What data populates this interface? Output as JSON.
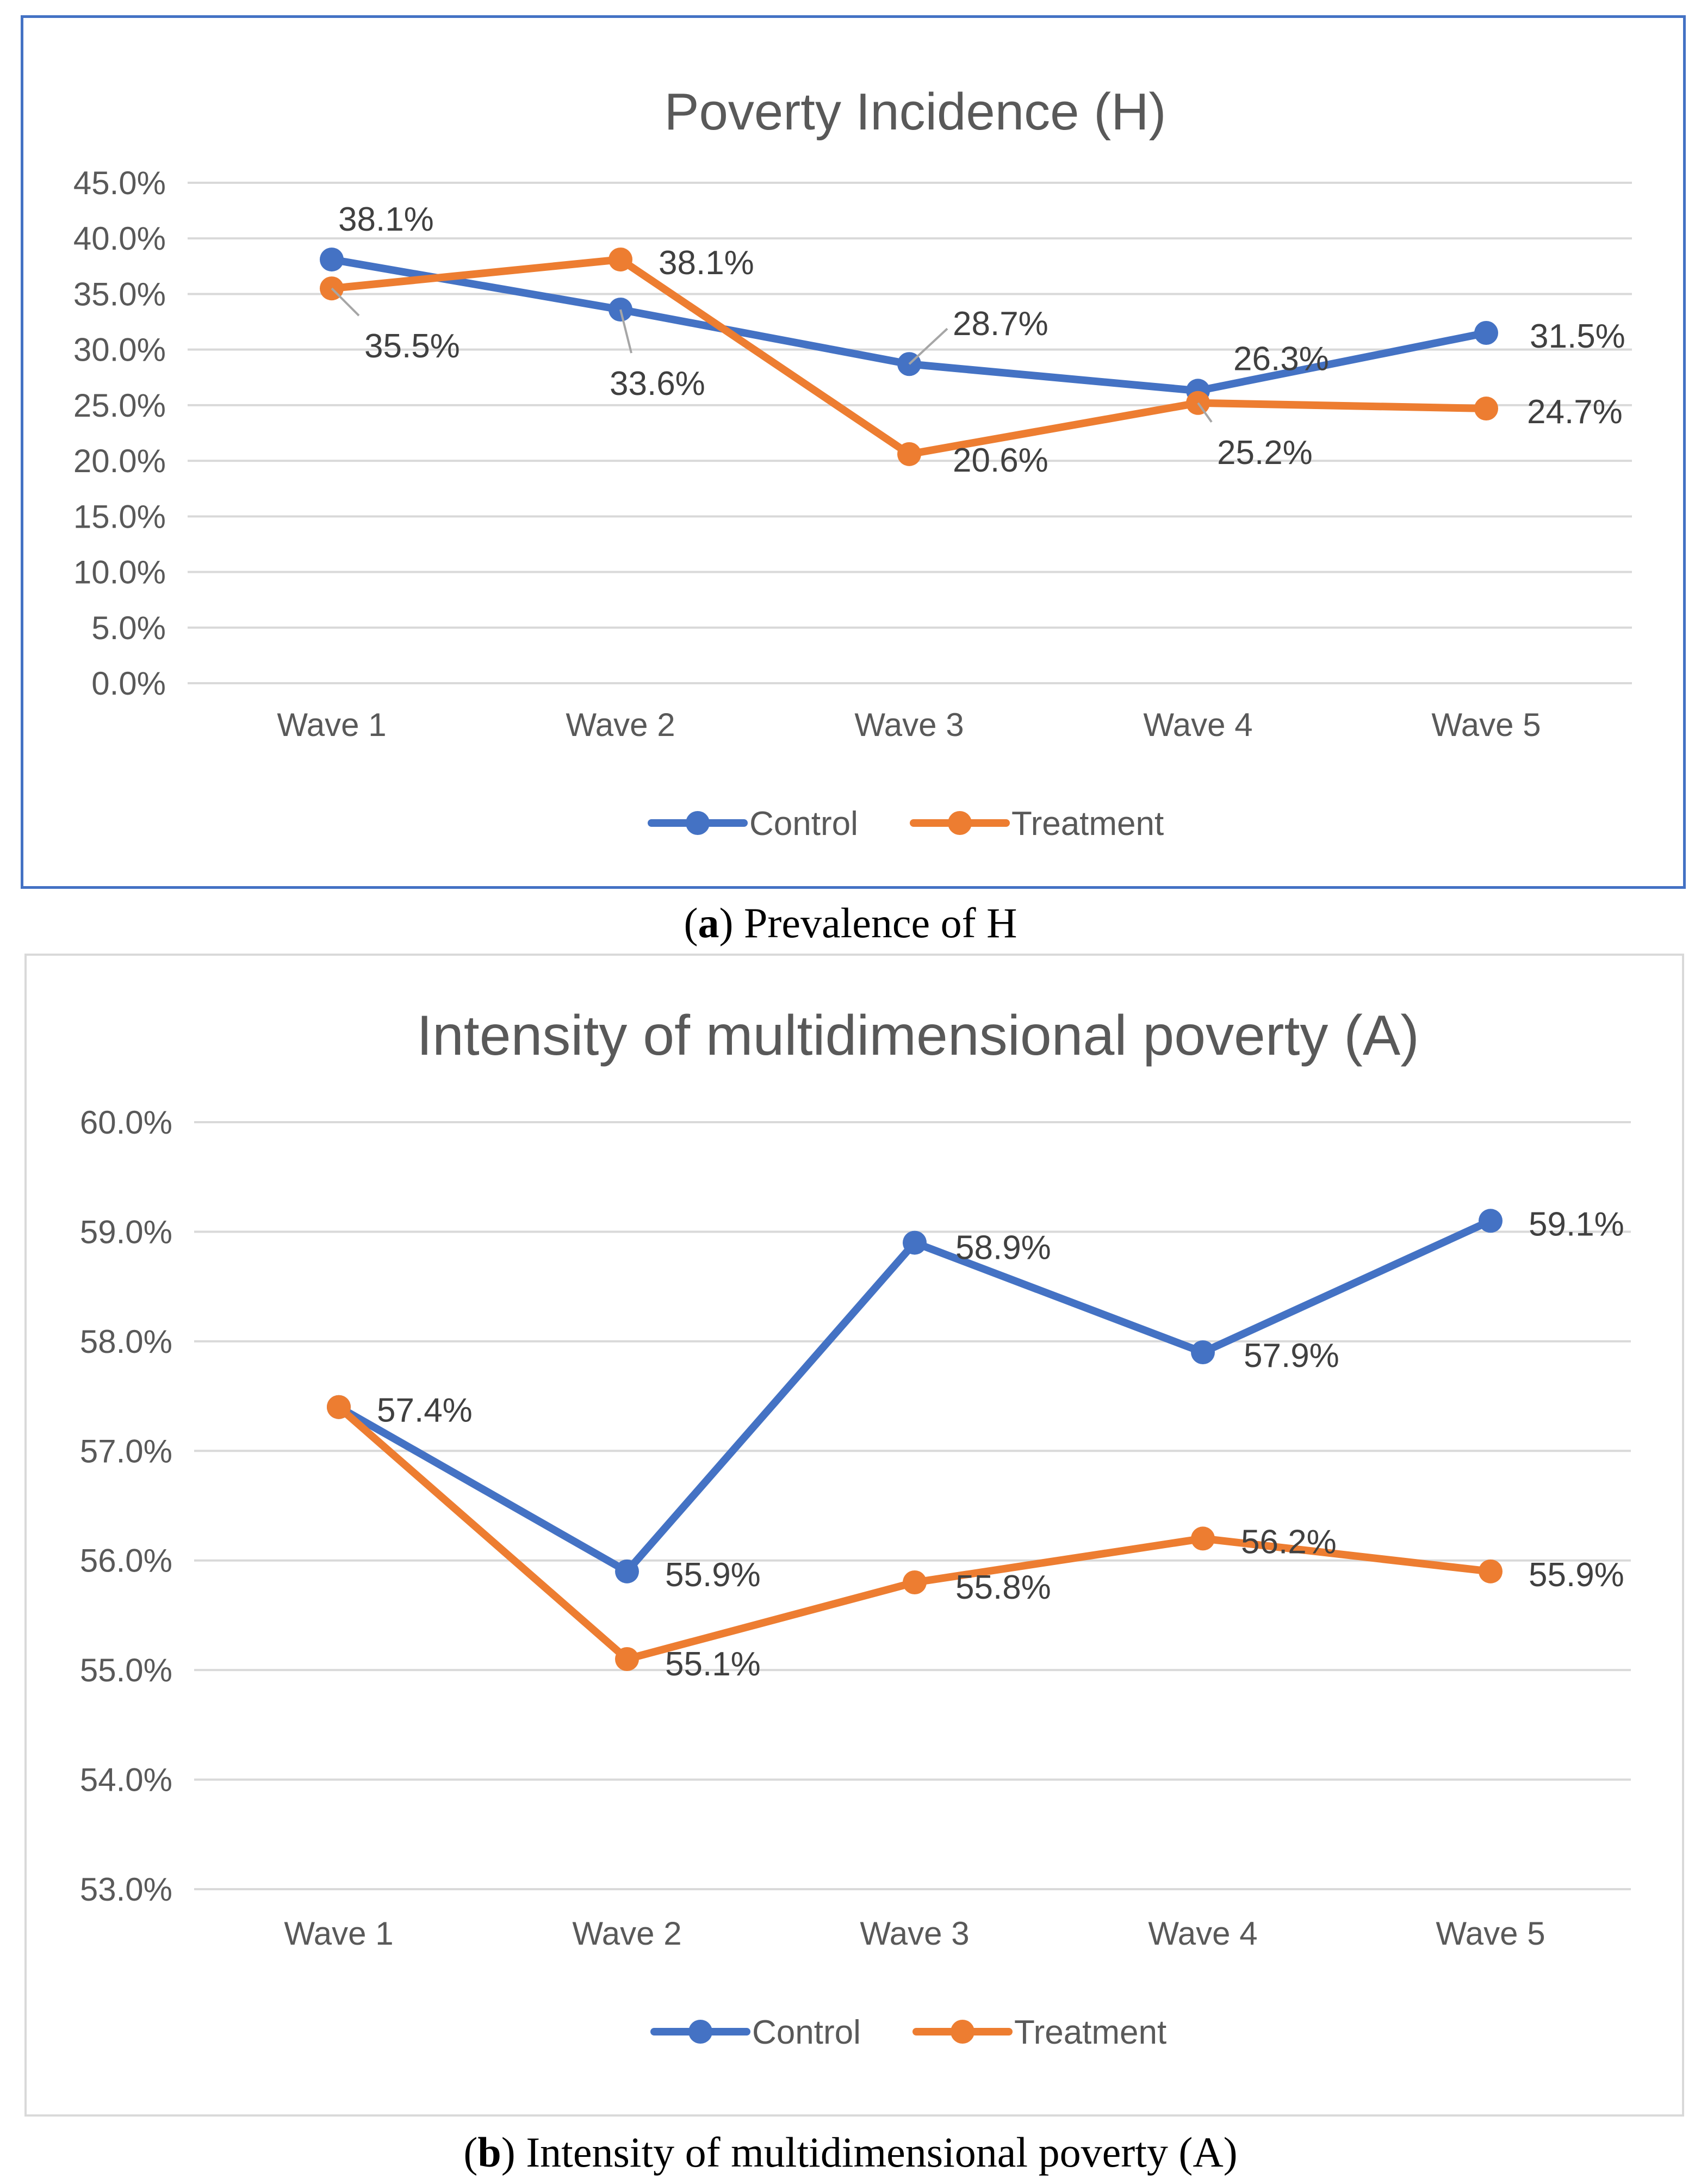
{
  "colors": {
    "control": "#4472c4",
    "treatment": "#ed7d31",
    "grid": "#d9d9d9",
    "text": "#595959"
  },
  "chart_data": [
    {
      "type": "line",
      "title": "Poverty Incidence (H)",
      "categories": [
        "Wave 1",
        "Wave 2",
        "Wave 3",
        "Wave 4",
        "Wave 5"
      ],
      "ylim": [
        0,
        45
      ],
      "y_ticks": [
        "45.0%",
        "40.0%",
        "35.0%",
        "30.0%",
        "25.0%",
        "20.0%",
        "15.0%",
        "10.0%",
        "5.0%",
        "0.0%"
      ],
      "grid": true,
      "legend_position": "bottom",
      "series": [
        {
          "name": "Control",
          "values": [
            38.1,
            33.6,
            28.7,
            26.3,
            31.5
          ],
          "labels": [
            "38.1%",
            "33.6%",
            "28.7%",
            "26.3%",
            "31.5%"
          ]
        },
        {
          "name": "Treatment",
          "values": [
            35.5,
            38.1,
            20.6,
            25.2,
            24.7
          ],
          "labels": [
            "35.5%",
            "38.1%",
            "20.6%",
            "25.2%",
            "24.7%"
          ]
        }
      ]
    },
    {
      "type": "line",
      "title": "Intensity of multidimensional poverty (A)",
      "categories": [
        "Wave 1",
        "Wave 2",
        "Wave 3",
        "Wave 4",
        "Wave 5"
      ],
      "ylim": [
        53,
        60
      ],
      "y_ticks": [
        "60.0%",
        "59.0%",
        "58.0%",
        "57.0%",
        "56.0%",
        "55.0%",
        "54.0%",
        "53.0%"
      ],
      "grid": true,
      "legend_position": "bottom",
      "series": [
        {
          "name": "Control",
          "values": [
            57.4,
            55.9,
            58.9,
            57.9,
            59.1
          ],
          "labels": [
            "57.4%",
            "55.9%",
            "58.9%",
            "57.9%",
            "59.1%"
          ]
        },
        {
          "name": "Treatment",
          "values": [
            57.4,
            55.1,
            55.8,
            56.2,
            55.9
          ],
          "labels": [
            "",
            "55.1%",
            "55.8%",
            "56.2%",
            "55.9%"
          ]
        }
      ]
    }
  ],
  "captions": {
    "a_letter": "a",
    "a_text": " Prevalence of H",
    "b_letter": "b",
    "b_text": " Intensity of multidimensional poverty (A)"
  }
}
